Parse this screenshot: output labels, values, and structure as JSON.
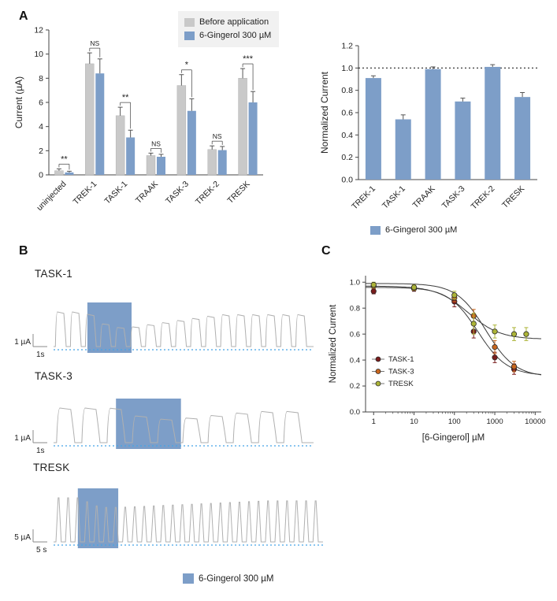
{
  "panels": {
    "a": {
      "label": "A"
    },
    "b": {
      "label": "B"
    },
    "c": {
      "label": "C"
    }
  },
  "colors": {
    "before": "#c9c9c9",
    "gingerol": "#7d9ec8",
    "trace": "#b0b0b0",
    "baseline_dots": "#45a5e6",
    "axis": "#444444",
    "task1": "#7a1c1c",
    "task3": "#c8661e",
    "tresk": "#acb437",
    "fit_curve": "#3c3c3c"
  },
  "legends": {
    "top": [
      {
        "label": "Before application",
        "swatch": "before"
      },
      {
        "label": "6-Gingerol 300 µM",
        "swatch": "gingerol"
      }
    ],
    "normalized": {
      "label": "6-Gingerol 300 µM",
      "swatch": "gingerol"
    },
    "traces": {
      "label": "6-Gingerol 300 µM",
      "swatch": "gingerol"
    }
  },
  "chart_data": [
    {
      "id": "current_by_channel",
      "type": "bar",
      "ylabel": "Current (µA)",
      "ylim": [
        0,
        12
      ],
      "yticks": [
        0,
        2,
        4,
        6,
        8,
        10,
        12
      ],
      "ytick_decimals": 0,
      "grid": false,
      "legend_position": "top",
      "categories": [
        "uninjected",
        "TREK-1",
        "TASK-1",
        "TRAAK",
        "TASK-3",
        "TREK-2",
        "TRESK"
      ],
      "series": [
        {
          "name": "Before application",
          "color_key": "before",
          "values": [
            0.35,
            9.2,
            4.9,
            1.6,
            7.4,
            2.1,
            8.0
          ],
          "errors": [
            0.15,
            0.9,
            0.7,
            0.2,
            0.9,
            0.3,
            0.8
          ]
        },
        {
          "name": "6-Gingerol 300 µM",
          "color_key": "gingerol",
          "values": [
            0.2,
            8.4,
            3.1,
            1.5,
            5.3,
            2.05,
            6.0
          ],
          "errors": [
            0.1,
            1.2,
            0.6,
            0.2,
            1.0,
            0.3,
            0.9
          ]
        }
      ],
      "significance": [
        "**",
        "NS",
        "**",
        "NS",
        "*",
        "NS",
        "***"
      ]
    },
    {
      "id": "normalized_current",
      "type": "bar",
      "ylabel": "Normalized Current",
      "ylim": [
        0,
        1.2
      ],
      "yticks": [
        0,
        0.2,
        0.4,
        0.6,
        0.8,
        1.0,
        1.2
      ],
      "ytick_decimals": 1,
      "grid": false,
      "reference_line": 1.0,
      "categories": [
        "TREK-1",
        "TASK-1",
        "TRAAK",
        "TASK-3",
        "TREK-2",
        "TRESK"
      ],
      "series": [
        {
          "name": "6-Gingerol 300 µM",
          "color_key": "gingerol",
          "values": [
            0.91,
            0.54,
            0.99,
            0.7,
            1.01,
            0.74
          ],
          "errors": [
            0.02,
            0.04,
            0.02,
            0.03,
            0.02,
            0.04
          ]
        }
      ]
    },
    {
      "id": "representative_traces",
      "type": "line",
      "traces": [
        {
          "label": "TASK-1",
          "scale_bar_current": "1 µA",
          "scale_bar_time": "1s",
          "pulses": 17,
          "shape": "square",
          "application_window": [
            0.13,
            0.3
          ],
          "relative_amplitude": {
            "before": 1.0,
            "during": 0.55,
            "after": 0.92
          },
          "recovery_span": 0.35
        },
        {
          "label": "TASK-3",
          "scale_bar_current": "1 µA",
          "scale_bar_time": "1s",
          "pulses": 10,
          "shape": "square",
          "application_window": [
            0.24,
            0.49
          ],
          "relative_amplitude": {
            "before": 1.0,
            "during": 0.68,
            "after": 0.9
          },
          "recovery_span": 0.3
        },
        {
          "label": "TRESK",
          "scale_bar_current": "5 µA",
          "scale_bar_time": "5 s",
          "pulses": 28,
          "shape": "spike",
          "application_window": [
            0.09,
            0.24
          ],
          "relative_amplitude": {
            "before": 1.0,
            "during": 0.78,
            "after": 0.93
          },
          "recovery_span": 0.55
        }
      ]
    },
    {
      "id": "dose_response",
      "type": "scatter",
      "xlabel": "[6-Gingerol] µM",
      "ylabel": "Normalized Current",
      "x_scale": "log",
      "xlim": [
        1,
        10000
      ],
      "xticks": [
        1,
        10,
        100,
        1000,
        10000
      ],
      "ylim": [
        0,
        1.05
      ],
      "yticks": [
        0,
        0.2,
        0.4,
        0.6,
        0.8,
        1.0
      ],
      "legend_position": "lower-left",
      "series": [
        {
          "name": "TASK-1",
          "color_key": "task1",
          "x": [
            1,
            10,
            100,
            300,
            1000,
            3000
          ],
          "y": [
            0.93,
            0.95,
            0.85,
            0.62,
            0.42,
            0.33
          ],
          "errors": [
            0.02,
            0.02,
            0.04,
            0.05,
            0.04,
            0.04
          ],
          "fit": {
            "top": 0.96,
            "bottom": 0.28,
            "ic50": 380,
            "hill": 1.2
          }
        },
        {
          "name": "TASK-3",
          "color_key": "task3",
          "x": [
            1,
            10,
            100,
            300,
            1000,
            3000
          ],
          "y": [
            0.97,
            0.96,
            0.88,
            0.74,
            0.5,
            0.35
          ],
          "errors": [
            0.02,
            0.02,
            0.03,
            0.05,
            0.05,
            0.04
          ],
          "fit": {
            "top": 0.99,
            "bottom": 0.27,
            "ic50": 600,
            "hill": 1.2
          }
        },
        {
          "name": "TRESK",
          "color_key": "tresk",
          "x": [
            1,
            10,
            100,
            300,
            1000,
            3000,
            6000
          ],
          "y": [
            0.98,
            0.96,
            0.9,
            0.68,
            0.62,
            0.6,
            0.6
          ],
          "errors": [
            0.02,
            0.02,
            0.03,
            0.08,
            0.05,
            0.05,
            0.05
          ],
          "fit": {
            "top": 0.97,
            "bottom": 0.56,
            "ic50": 220,
            "hill": 1.1
          }
        }
      ]
    }
  ]
}
